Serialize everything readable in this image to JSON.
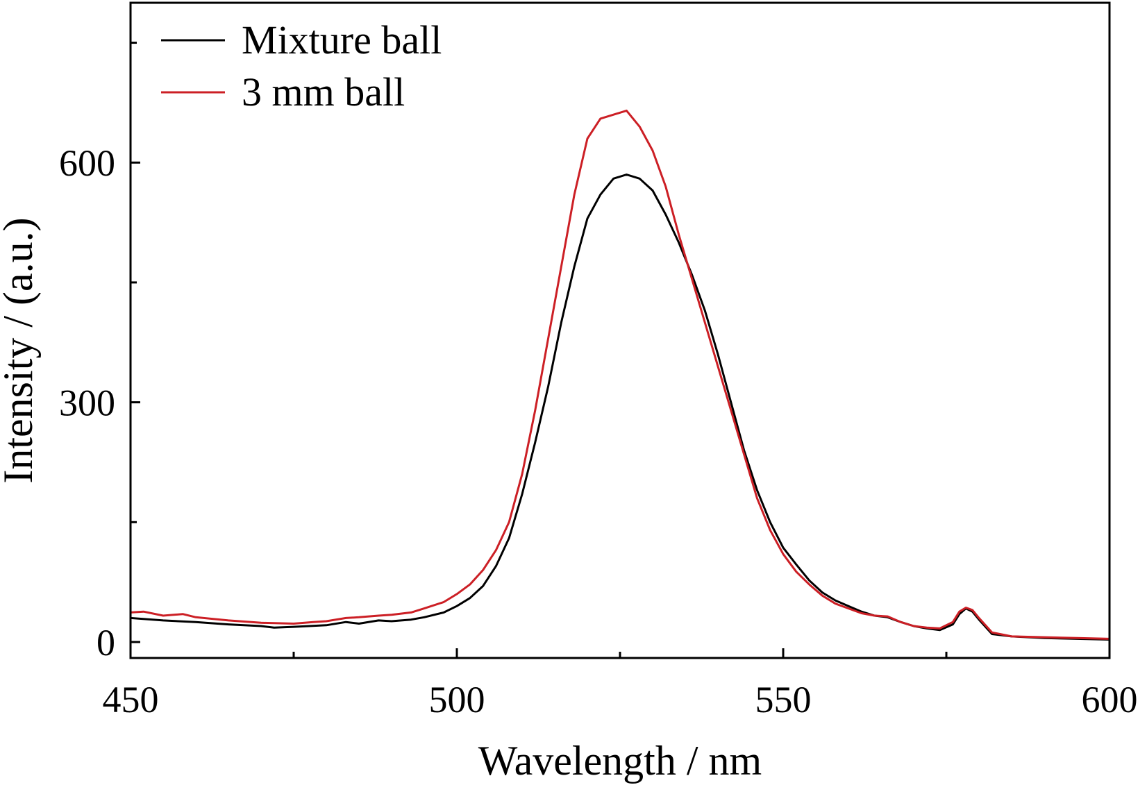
{
  "chart_data": {
    "type": "line",
    "title": "",
    "xlabel": "Wavelength / nm",
    "ylabel": "Intensity / (a.u.)",
    "xlim": [
      450,
      600
    ],
    "ylim": [
      -20,
      800
    ],
    "x_ticks": [
      450,
      500,
      550,
      600
    ],
    "x_tick_labels": [
      "450",
      "500",
      "550",
      "600"
    ],
    "x_minor_ticks": [
      475,
      525,
      575
    ],
    "y_ticks": [
      0,
      300,
      600
    ],
    "y_tick_labels": [
      "0",
      "300",
      "600"
    ],
    "y_minor_ticks": [
      150,
      450,
      750
    ],
    "grid": false,
    "legend_position": "top-left",
    "series": [
      {
        "name": "Mixture ball",
        "color": "#000000",
        "points": [
          [
            450,
            30
          ],
          [
            455,
            27
          ],
          [
            460,
            25
          ],
          [
            465,
            22
          ],
          [
            470,
            20
          ],
          [
            472,
            18
          ],
          [
            475,
            19
          ],
          [
            480,
            21
          ],
          [
            483,
            25
          ],
          [
            485,
            23
          ],
          [
            488,
            27
          ],
          [
            490,
            26
          ],
          [
            493,
            28
          ],
          [
            495,
            31
          ],
          [
            498,
            37
          ],
          [
            500,
            45
          ],
          [
            502,
            55
          ],
          [
            504,
            70
          ],
          [
            506,
            95
          ],
          [
            508,
            130
          ],
          [
            510,
            185
          ],
          [
            512,
            250
          ],
          [
            514,
            320
          ],
          [
            516,
            400
          ],
          [
            518,
            470
          ],
          [
            520,
            530
          ],
          [
            522,
            560
          ],
          [
            524,
            580
          ],
          [
            526,
            585
          ],
          [
            528,
            580
          ],
          [
            530,
            565
          ],
          [
            532,
            535
          ],
          [
            534,
            500
          ],
          [
            536,
            460
          ],
          [
            538,
            415
          ],
          [
            540,
            360
          ],
          [
            542,
            300
          ],
          [
            544,
            240
          ],
          [
            546,
            190
          ],
          [
            548,
            150
          ],
          [
            550,
            118
          ],
          [
            552,
            97
          ],
          [
            554,
            77
          ],
          [
            556,
            62
          ],
          [
            558,
            52
          ],
          [
            560,
            45
          ],
          [
            562,
            38
          ],
          [
            564,
            33
          ],
          [
            566,
            31
          ],
          [
            568,
            25
          ],
          [
            570,
            20
          ],
          [
            572,
            17
          ],
          [
            574,
            15
          ],
          [
            576,
            22
          ],
          [
            577,
            35
          ],
          [
            578,
            42
          ],
          [
            579,
            38
          ],
          [
            580,
            28
          ],
          [
            582,
            10
          ],
          [
            585,
            7
          ],
          [
            590,
            5
          ],
          [
            595,
            4
          ],
          [
            600,
            3
          ]
        ]
      },
      {
        "name": "3 mm ball",
        "color": "#cc1f25",
        "points": [
          [
            450,
            37
          ],
          [
            452,
            38
          ],
          [
            455,
            33
          ],
          [
            458,
            35
          ],
          [
            460,
            31
          ],
          [
            465,
            27
          ],
          [
            470,
            24
          ],
          [
            475,
            23
          ],
          [
            478,
            25
          ],
          [
            480,
            26
          ],
          [
            483,
            30
          ],
          [
            485,
            31
          ],
          [
            488,
            33
          ],
          [
            490,
            34
          ],
          [
            493,
            37
          ],
          [
            495,
            42
          ],
          [
            498,
            50
          ],
          [
            500,
            60
          ],
          [
            502,
            72
          ],
          [
            504,
            90
          ],
          [
            506,
            115
          ],
          [
            508,
            150
          ],
          [
            510,
            210
          ],
          [
            512,
            290
          ],
          [
            514,
            380
          ],
          [
            516,
            470
          ],
          [
            518,
            560
          ],
          [
            520,
            630
          ],
          [
            522,
            655
          ],
          [
            524,
            660
          ],
          [
            526,
            665
          ],
          [
            528,
            645
          ],
          [
            530,
            615
          ],
          [
            532,
            570
          ],
          [
            534,
            510
          ],
          [
            536,
            455
          ],
          [
            538,
            400
          ],
          [
            540,
            345
          ],
          [
            542,
            290
          ],
          [
            544,
            235
          ],
          [
            546,
            180
          ],
          [
            548,
            140
          ],
          [
            550,
            110
          ],
          [
            552,
            88
          ],
          [
            554,
            72
          ],
          [
            556,
            58
          ],
          [
            558,
            48
          ],
          [
            560,
            42
          ],
          [
            562,
            36
          ],
          [
            564,
            33
          ],
          [
            566,
            32
          ],
          [
            568,
            25
          ],
          [
            570,
            20
          ],
          [
            572,
            18
          ],
          [
            574,
            17
          ],
          [
            576,
            25
          ],
          [
            577,
            38
          ],
          [
            578,
            43
          ],
          [
            579,
            40
          ],
          [
            580,
            30
          ],
          [
            582,
            12
          ],
          [
            585,
            7
          ],
          [
            590,
            6
          ],
          [
            595,
            5
          ],
          [
            600,
            4
          ]
        ]
      }
    ]
  }
}
